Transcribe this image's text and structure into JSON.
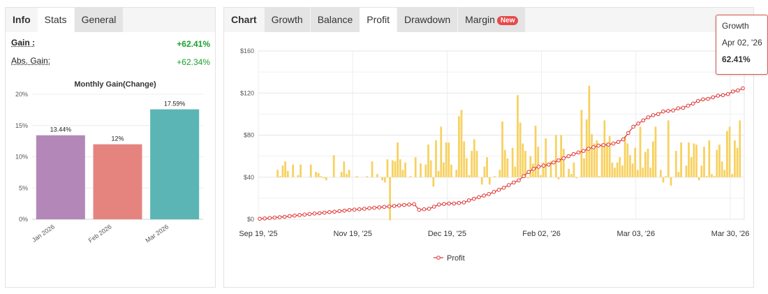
{
  "left_tabs": [
    {
      "label": "Info",
      "state": "header"
    },
    {
      "label": "Stats",
      "state": "active"
    },
    {
      "label": "General",
      "state": "inactive"
    }
  ],
  "stats": {
    "gain_label": "Gain :",
    "gain_value": "+62.41%",
    "abs_gain_label": "Abs. Gain:",
    "abs_gain_value": "+62.34%"
  },
  "monthly_chart": {
    "chart_data": {
      "type": "bar",
      "title": "Monthly Gain(Change)",
      "categories": [
        "Jan 2026",
        "Feb 2026",
        "Mar 2026"
      ],
      "values": [
        13.44,
        12,
        17.59
      ],
      "data_labels": [
        "13.44%",
        "12%",
        "17.59%"
      ],
      "colors": [
        "#b388b8",
        "#e5847f",
        "#5ab5b4"
      ],
      "yticks": [
        "0%",
        "5%",
        "10%",
        "15%",
        "20%"
      ],
      "ylim": [
        0,
        20
      ]
    }
  },
  "right_tabs": [
    {
      "label": "Chart",
      "state": "header"
    },
    {
      "label": "Growth",
      "state": "inactive"
    },
    {
      "label": "Balance",
      "state": "inactive"
    },
    {
      "label": "Profit",
      "state": "active"
    },
    {
      "label": "Drawdown",
      "state": "inactive"
    },
    {
      "label": "Margin",
      "state": "inactive",
      "badge": "New"
    }
  ],
  "profit_chart": {
    "chart_data": {
      "type": "line",
      "legend": {
        "name": "Profit",
        "position": "bottom-center"
      },
      "yticks": [
        "$0",
        "$40",
        "$80",
        "$120",
        "$160"
      ],
      "ylim": [
        0,
        160
      ],
      "xticks": [
        "Sep 19, '25",
        "Nov 19, '25",
        "Dec 19, '25",
        "Feb 02, '26",
        "Mar 03, '26",
        "Mar 30, '26"
      ],
      "line_color": "#e0312f",
      "bar_color": "#f7d15f",
      "profit_line": [
        0.5,
        0.8,
        1.2,
        1.6,
        2.0,
        2.4,
        3.0,
        3.5,
        4.0,
        4.5,
        5.0,
        5.5,
        5.8,
        6.3,
        6.8,
        7.2,
        7.8,
        8.2,
        8.8,
        9.2,
        9.5,
        10.0,
        10.5,
        11.0,
        11.3,
        11.8,
        12.2,
        12.7,
        13.2,
        13.6,
        14.0,
        14.3,
        9.0,
        9.5,
        10.0,
        12.0,
        14.0,
        14.5,
        15.0,
        15.0,
        15.5,
        16.0,
        18.0,
        19.5,
        21.0,
        22.5,
        24.0,
        26.0,
        28.0,
        30.0,
        32.5,
        35.0,
        37.0,
        41.0,
        45.0,
        48.0,
        50.0,
        51.0,
        52.0,
        54.0,
        56.0,
        58.0,
        60.0,
        62.0,
        63.5,
        65.0,
        67.0,
        68.5,
        70.0,
        70.5,
        71.0,
        72.0,
        73.5,
        76.0,
        82.0,
        88.0,
        91.0,
        94.0,
        97.0,
        99.0,
        100.0,
        102.5,
        103.0,
        103.5,
        105.5,
        106.0,
        108.0,
        110.0,
        112.5,
        114.0,
        114.5,
        116.0,
        117.5,
        118.0,
        119.0,
        121.5,
        122.5,
        124.5
      ],
      "bars": [
        0,
        0,
        0,
        0,
        0,
        7,
        1,
        11,
        15,
        6,
        0,
        12,
        0,
        2,
        12,
        0,
        0,
        0,
        12,
        0,
        5,
        4,
        1,
        -1,
        -3,
        0,
        0,
        21,
        0,
        0,
        5,
        15,
        3,
        7,
        0,
        0,
        1,
        0,
        0,
        0,
        1,
        0,
        15,
        0,
        3,
        0,
        -3,
        -5,
        17,
        -41,
        16,
        15,
        33,
        17,
        7,
        14,
        0,
        1,
        0,
        19,
        0,
        13,
        0,
        12,
        31,
        16,
        -9,
        35,
        6,
        48,
        14,
        33,
        33,
        12,
        0,
        7,
        58,
        64,
        34,
        18,
        2,
        25,
        36,
        25,
        0,
        -7,
        10,
        19,
        -7,
        0,
        1,
        0,
        7,
        53,
        26,
        18,
        0,
        28,
        10,
        78,
        52,
        32,
        25,
        -1,
        20,
        13,
        49,
        29,
        2,
        14,
        37,
        0,
        15,
        0,
        40,
        -2,
        40,
        27,
        0,
        8,
        3,
        14,
        -1,
        0,
        64,
        18,
        55,
        87,
        41,
        32,
        35,
        1,
        32,
        54,
        33,
        39,
        14,
        9,
        14,
        19,
        11,
        39,
        32,
        21,
        13,
        28,
        7,
        48,
        9,
        24,
        27,
        9,
        34,
        48,
        0,
        7,
        -5,
        1,
        54,
        -8,
        0,
        25,
        5,
        33,
        0,
        11,
        33,
        19,
        32,
        31,
        -3,
        11,
        29,
        1,
        35,
        3,
        1,
        26,
        31,
        15,
        7,
        44,
        48,
        3,
        35,
        28,
        54
      ],
      "tooltip": {
        "title": "Growth",
        "date": "Apr 02, '26",
        "value": "62.41%"
      }
    }
  }
}
